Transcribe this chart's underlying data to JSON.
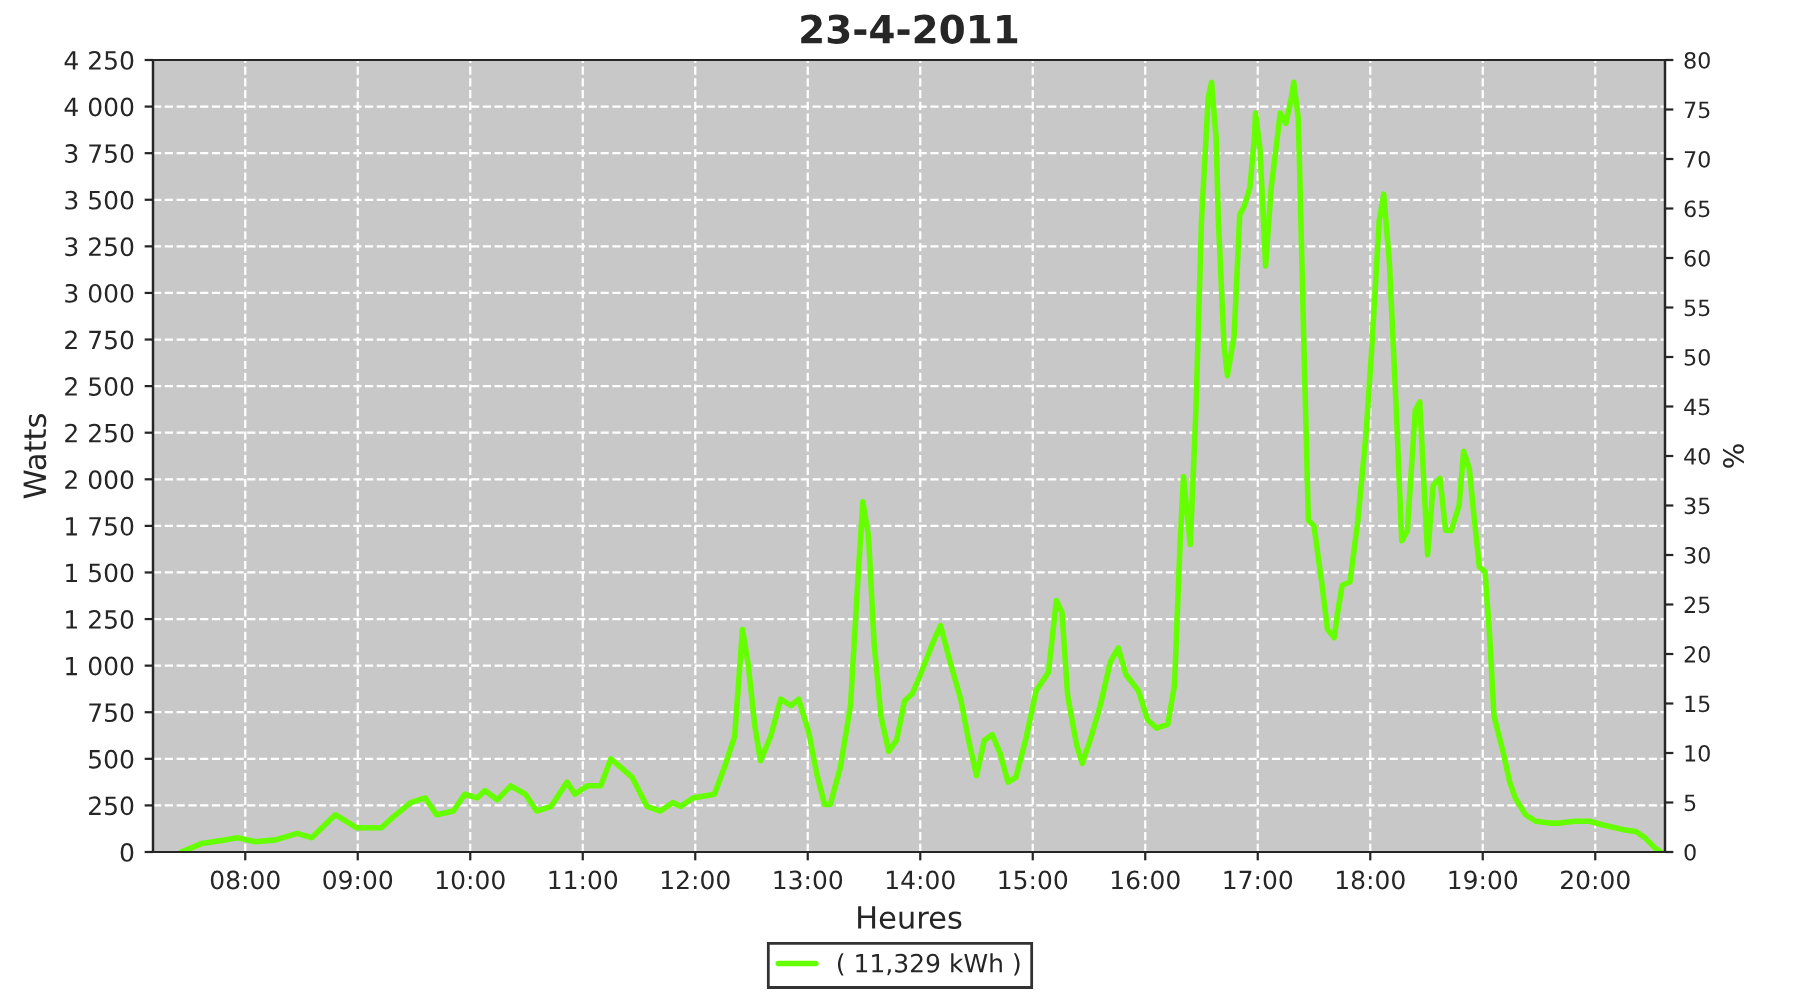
{
  "chart_data": {
    "type": "line",
    "title": "23-4-2011",
    "xlabel": "Heures",
    "ylabel": "Watts",
    "y2label": "%",
    "xlim": [
      7.18,
      20.62
    ],
    "xticks": [
      {
        "value": 8,
        "label": "08:00"
      },
      {
        "value": 9,
        "label": "09:00"
      },
      {
        "value": 10,
        "label": "10:00"
      },
      {
        "value": 11,
        "label": "11:00"
      },
      {
        "value": 12,
        "label": "12:00"
      },
      {
        "value": 13,
        "label": "13:00"
      },
      {
        "value": 14,
        "label": "14:00"
      },
      {
        "value": 15,
        "label": "15:00"
      },
      {
        "value": 16,
        "label": "16:00"
      },
      {
        "value": 17,
        "label": "17:00"
      },
      {
        "value": 18,
        "label": "18:00"
      },
      {
        "value": 19,
        "label": "19:00"
      },
      {
        "value": 20,
        "label": "20:00"
      }
    ],
    "ylim": [
      0,
      4250
    ],
    "yticks": [
      0,
      250,
      500,
      750,
      {
        "value": 1000,
        "label": "1 000"
      },
      {
        "value": 1250,
        "label": "1 250"
      },
      {
        "value": 1500,
        "label": "1 500"
      },
      {
        "value": 1750,
        "label": "1 750"
      },
      {
        "value": 2000,
        "label": "2 000"
      },
      {
        "value": 2250,
        "label": "2 250"
      },
      {
        "value": 2500,
        "label": "2 500"
      },
      {
        "value": 2750,
        "label": "2 750"
      },
      {
        "value": 3000,
        "label": "3 000"
      },
      {
        "value": 3250,
        "label": "3 250"
      },
      {
        "value": 3500,
        "label": "3 500"
      },
      {
        "value": 3750,
        "label": "3 750"
      },
      {
        "value": 4000,
        "label": "4 000"
      },
      {
        "value": 4250,
        "label": "4 250"
      }
    ],
    "y2lim": [
      0,
      80
    ],
    "y2ticks": [
      0,
      5,
      10,
      15,
      20,
      25,
      30,
      35,
      40,
      45,
      50,
      55,
      60,
      65,
      70,
      75,
      80
    ],
    "grid": true,
    "legend": "bottom",
    "line_style": "solid",
    "series": [
      {
        "name": "( 11,329 kWh )",
        "color": "#66ff00",
        "x": [
          7.43,
          7.61,
          7.82,
          7.93,
          8.09,
          8.27,
          8.46,
          8.59,
          8.8,
          8.99,
          9.21,
          9.3,
          9.47,
          9.6,
          9.7,
          9.85,
          9.95,
          10.06,
          10.13,
          10.24,
          10.36,
          10.49,
          10.59,
          10.72,
          10.86,
          10.93,
          11.04,
          11.16,
          11.25,
          11.44,
          11.57,
          11.69,
          11.8,
          11.87,
          11.98,
          12.17,
          12.26,
          12.35,
          12.42,
          12.47,
          12.53,
          12.58,
          12.67,
          12.76,
          12.85,
          12.92,
          13.01,
          13.08,
          13.15,
          13.2,
          13.29,
          13.38,
          13.45,
          13.49,
          13.54,
          13.59,
          13.65,
          13.72,
          13.79,
          13.86,
          13.93,
          14.0,
          14.11,
          14.18,
          14.27,
          14.36,
          14.43,
          14.5,
          14.57,
          14.64,
          14.71,
          14.78,
          14.85,
          14.94,
          15.03,
          15.14,
          15.21,
          15.26,
          15.31,
          15.39,
          15.44,
          15.51,
          15.6,
          15.69,
          15.76,
          15.83,
          15.94,
          16.02,
          16.1,
          16.2,
          16.26,
          16.31,
          16.34,
          16.4,
          16.45,
          16.5,
          16.56,
          16.59,
          16.63,
          16.65,
          16.7,
          16.73,
          16.79,
          16.84,
          16.88,
          16.93,
          16.97,
          16.98,
          17.02,
          17.07,
          17.12,
          17.2,
          17.25,
          17.3,
          17.32,
          17.36,
          17.37,
          17.41,
          17.45,
          17.5,
          17.57,
          17.62,
          17.68,
          17.71,
          17.75,
          17.82,
          17.89,
          17.96,
          18.01,
          18.08,
          18.12,
          18.17,
          18.23,
          18.28,
          18.33,
          18.4,
          18.44,
          18.47,
          18.51,
          18.56,
          18.62,
          18.67,
          18.72,
          18.79,
          18.83,
          18.88,
          18.92,
          18.97,
          19.02,
          19.06,
          19.1,
          19.18,
          19.24,
          19.29,
          19.38,
          19.47,
          19.59,
          19.68,
          19.82,
          19.95,
          20.07,
          20.25,
          20.36,
          20.44,
          20.53,
          20.58
        ],
        "values": [
          0,
          45,
          65,
          77,
          55,
          65,
          100,
          77,
          200,
          130,
          130,
          180,
          265,
          290,
          200,
          220,
          310,
          290,
          330,
          280,
          355,
          310,
          220,
          245,
          375,
          310,
          355,
          355,
          500,
          400,
          245,
          220,
          265,
          245,
          290,
          310,
          455,
          620,
          1195,
          1010,
          675,
          490,
          620,
          820,
          785,
          820,
          640,
          420,
          255,
          255,
          455,
          785,
          1505,
          1880,
          1695,
          1120,
          730,
          540,
          600,
          810,
          850,
          950,
          1120,
          1215,
          1010,
          820,
          600,
          410,
          600,
          630,
          530,
          375,
          400,
          610,
          865,
          965,
          1350,
          1285,
          840,
          575,
          475,
          600,
          785,
          1020,
          1095,
          950,
          865,
          710,
          665,
          685,
          895,
          1660,
          2015,
          1650,
          2360,
          3390,
          4050,
          4130,
          3830,
          3390,
          2725,
          2555,
          2770,
          3420,
          3465,
          3565,
          3830,
          3965,
          3775,
          3145,
          3565,
          3965,
          3910,
          4050,
          4130,
          3940,
          3720,
          2725,
          1780,
          1750,
          1440,
          1195,
          1150,
          1285,
          1430,
          1450,
          1780,
          2225,
          2670,
          3390,
          3530,
          3165,
          2390,
          1670,
          1725,
          2370,
          2415,
          2060,
          1595,
          1970,
          2005,
          1725,
          1725,
          1860,
          2150,
          2060,
          1815,
          1530,
          1505,
          1175,
          730,
          540,
          375,
          290,
          200,
          165,
          155,
          155,
          165,
          165,
          145,
          120,
          110,
          77,
          22,
          0
        ]
      }
    ]
  }
}
